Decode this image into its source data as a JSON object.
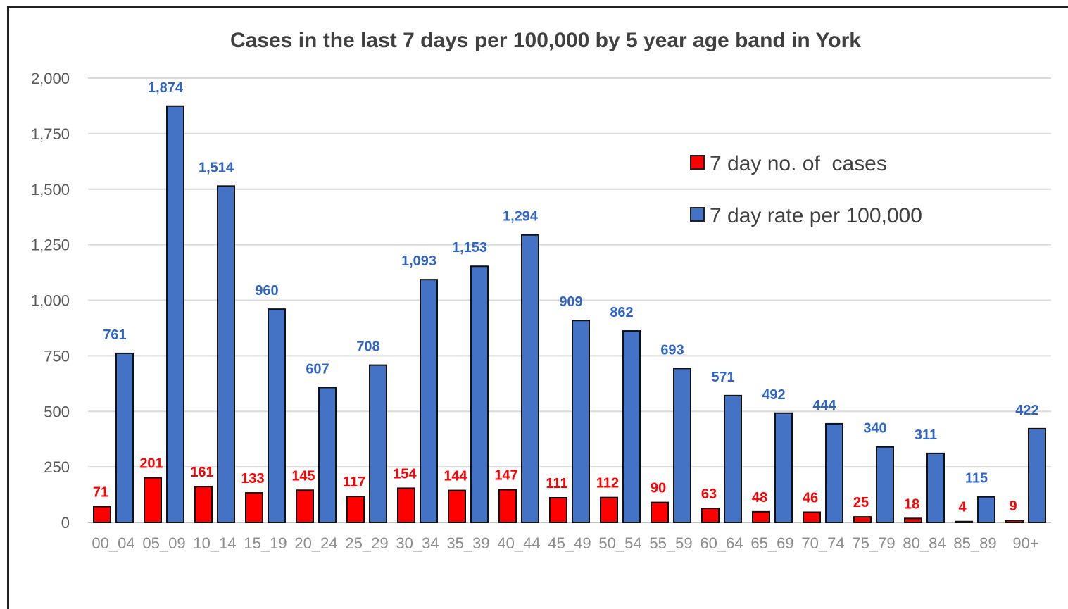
{
  "chart_data": {
    "type": "bar",
    "title": "Cases in the last 7 days per 100,000 by 5 year age band in York",
    "xlabel": "",
    "ylabel": "",
    "ylim": [
      0,
      2000
    ],
    "yticks": [
      0,
      250,
      500,
      750,
      1000,
      1250,
      1500,
      1750,
      2000
    ],
    "ytick_labels": [
      "0",
      "250",
      "500",
      "750",
      "1,000",
      "1,250",
      "1,500",
      "1,750",
      "2,000"
    ],
    "grid": true,
    "legend_position": "top-right",
    "categories": [
      "00_04",
      "05_09",
      "10_14",
      "15_19",
      "20_24",
      "25_29",
      "30_34",
      "35_39",
      "40_44",
      "45_49",
      "50_54",
      "55_59",
      "60_64",
      "65_69",
      "70_74",
      "75_79",
      "80_84",
      "85_89",
      "90+"
    ],
    "series": [
      {
        "name": "7 day no. of  cases",
        "color": "#ff0000",
        "label_color": "#ff0000",
        "values": [
          71,
          201,
          161,
          133,
          145,
          117,
          154,
          144,
          147,
          111,
          112,
          90,
          63,
          48,
          46,
          25,
          18,
          4,
          9
        ]
      },
      {
        "name": "7 day rate per 100,000",
        "color": "#4472c4",
        "label_color": "#2e64c8",
        "values": [
          761,
          1874,
          1514,
          960,
          607,
          708,
          1093,
          1153,
          1294,
          909,
          862,
          693,
          571,
          492,
          444,
          340,
          311,
          115,
          422
        ],
        "value_labels": [
          "761",
          "1,874",
          "1,514",
          "960",
          "607",
          "708",
          "1,093",
          "1,153",
          "1,294",
          "909",
          "862",
          "693",
          "571",
          "492",
          "444",
          "340",
          "311",
          "115",
          "422"
        ]
      }
    ]
  }
}
